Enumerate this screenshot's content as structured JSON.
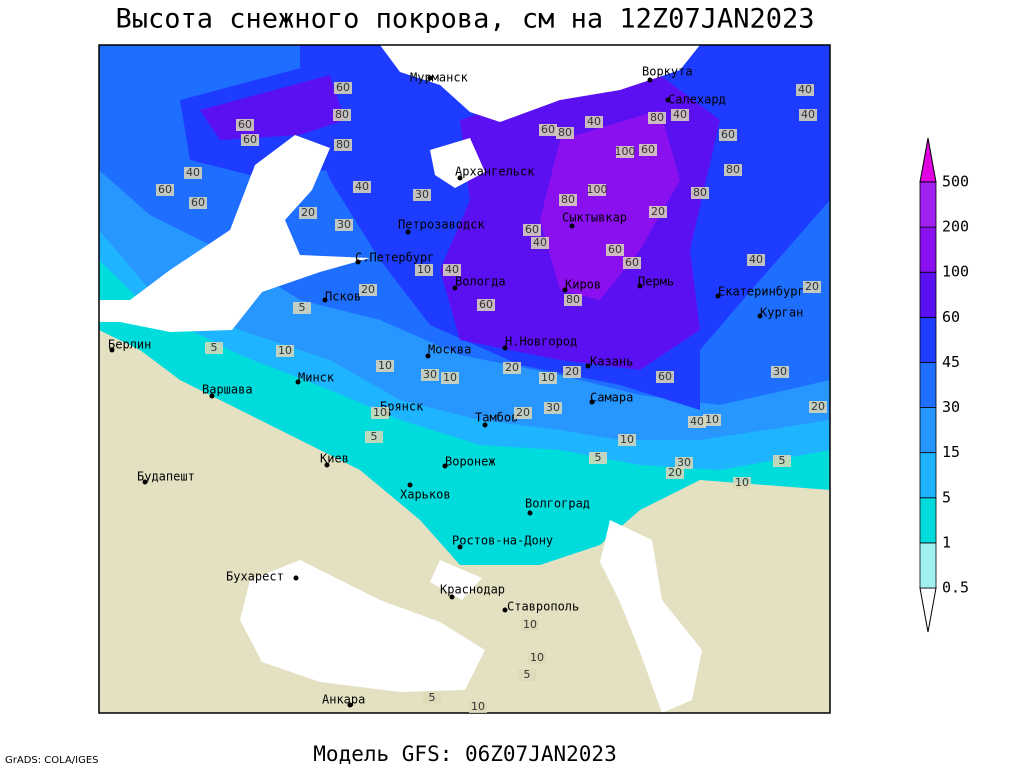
{
  "header": {
    "title": "Высота снежного покрова, см на 12Z07JAN2023"
  },
  "footer": {
    "model": "Модель GFS: 06Z07JAN2023",
    "credit": "GrADS: COLA/IGES"
  },
  "colorbar": {
    "levels": [
      0.5,
      1,
      5,
      15,
      30,
      45,
      60,
      100,
      200,
      500
    ],
    "colors": [
      "#ffffff",
      "#a0f0f0",
      "#00dcdc",
      "#1eb4ff",
      "#2896ff",
      "#1e6eff",
      "#1e3cff",
      "#5a10f0",
      "#8a10f0",
      "#a020f0",
      "#e000e0"
    ]
  },
  "cities": [
    "Мурманск",
    "Воркута",
    "Салехард",
    "Архангельск",
    "Петрозаводск",
    "Сыктывкар",
    "С.Петербург",
    "Вологда",
    "Киров",
    "Пермь",
    "Екатеринбург",
    "Псков",
    "Курган",
    "Берлин",
    "Н.Новгород",
    "Москва",
    "Казань",
    "Минск",
    "Варшава",
    "Самара",
    "Брянск",
    "Тамбов",
    "Воронеж",
    "Киев",
    "Будапешт",
    "Харьков",
    "Волгоград",
    "Ростов-на-Дону",
    "Бухарест",
    "Краснодар",
    "Ставрополь",
    "Анкара"
  ],
  "contour_labels": [
    60,
    80,
    60,
    60,
    80,
    40,
    60,
    60,
    40,
    20,
    30,
    30,
    60,
    80,
    40,
    100,
    60,
    80,
    40,
    60,
    40,
    40,
    80,
    80,
    100,
    80,
    60,
    40,
    20,
    60,
    60,
    40,
    20,
    10,
    40,
    60,
    80,
    20,
    5,
    10,
    5,
    10,
    30,
    10,
    20,
    10,
    20,
    60,
    30,
    20,
    10,
    5,
    20,
    30,
    40,
    10,
    10,
    5,
    30,
    20,
    5,
    10,
    10,
    10,
    5,
    5,
    10
  ]
}
